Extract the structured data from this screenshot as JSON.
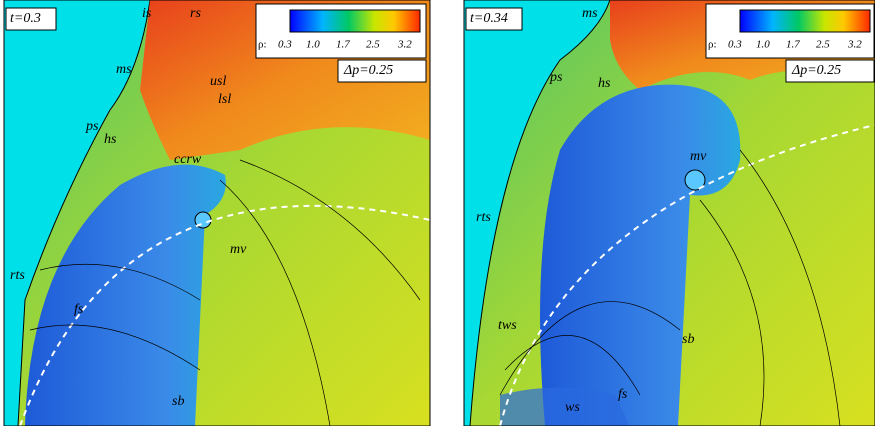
{
  "panels": [
    {
      "time": "t=0.3",
      "colorbar": {
        "label": "ρ:",
        "ticks": [
          "0.3",
          "1.0",
          "1.7",
          "2.5",
          "3.2"
        ]
      },
      "pressure": "Δp=0.25",
      "labels": [
        "is",
        "rs",
        "ms",
        "usl",
        "lsl",
        "ps",
        "hs",
        "ccrw",
        "mv",
        "rts",
        "fs",
        "sb"
      ]
    },
    {
      "time": "t=0.34",
      "colorbar": {
        "label": "ρ:",
        "ticks": [
          "0.3",
          "1.0",
          "1.7",
          "2.5",
          "3.2"
        ]
      },
      "pressure": "Δp=0.25",
      "labels": [
        "ms",
        "ps",
        "hs",
        "mv",
        "rts",
        "tws",
        "sb",
        "ws",
        "fs"
      ]
    }
  ]
}
